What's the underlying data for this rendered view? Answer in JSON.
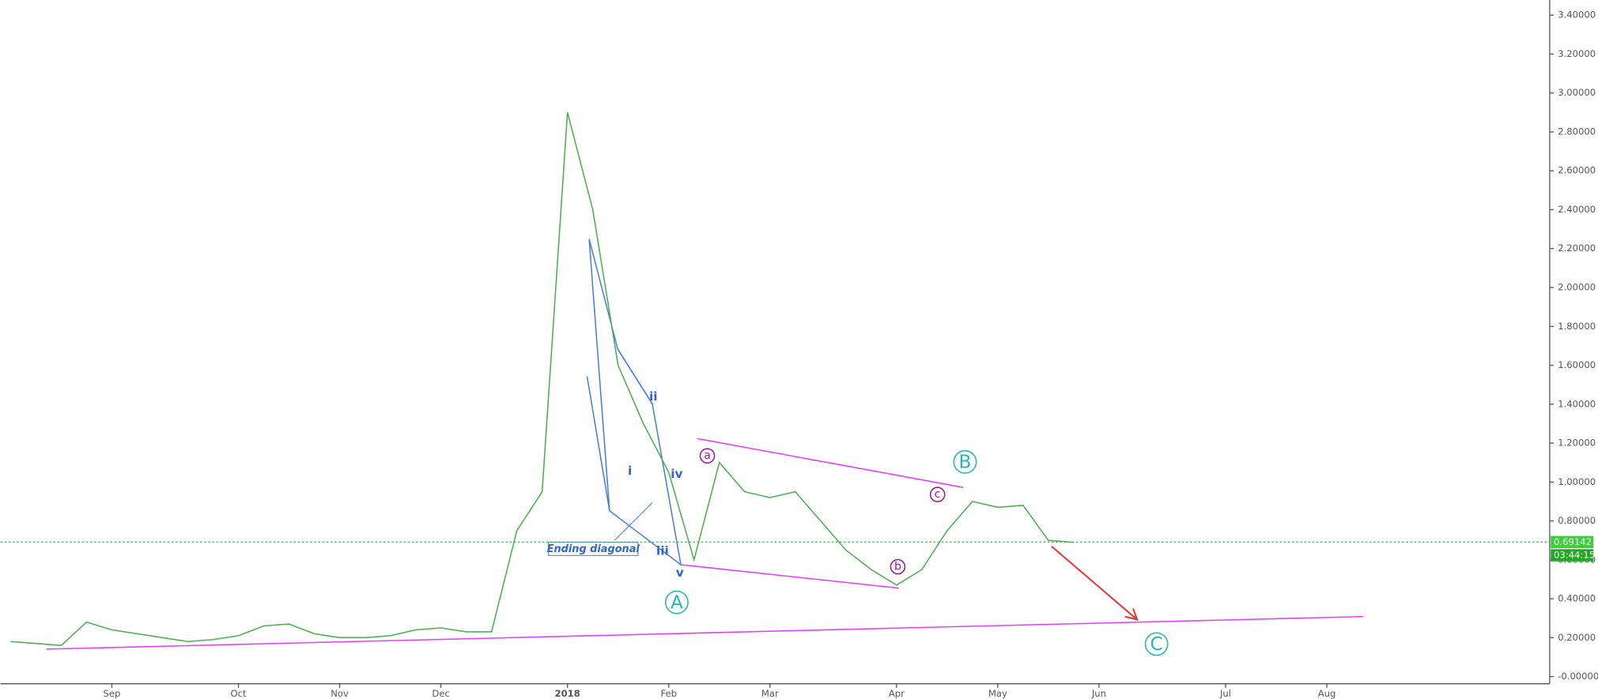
{
  "chart_data": {
    "type": "line",
    "categories": [
      null,
      null,
      null,
      null,
      "Sep",
      null,
      null,
      null,
      null,
      "Oct",
      null,
      null,
      null,
      "Nov",
      null,
      null,
      null,
      "Dec",
      null,
      null,
      null,
      null,
      "2018",
      null,
      null,
      null,
      "Feb",
      null,
      null,
      null,
      "Mar",
      null,
      null,
      null,
      null,
      "Apr",
      null,
      null,
      null,
      "May",
      null,
      null,
      null,
      "Jun",
      null,
      null,
      null,
      null,
      "Jul",
      null,
      null,
      null,
      "Aug",
      null,
      null,
      null,
      null,
      null,
      null,
      null,
      null
    ],
    "series": [
      {
        "name": null,
        "color": "#4caf50",
        "values": [
          0.18,
          0.17,
          0.16,
          0.28,
          0.24,
          0.22,
          0.2,
          0.18,
          0.19,
          0.21,
          0.26,
          0.27,
          0.22,
          0.2,
          0.2,
          0.21,
          0.24,
          0.25,
          0.23,
          0.23,
          0.75,
          0.95,
          2.9,
          2.4,
          1.6,
          1.3,
          1.05,
          0.6,
          1.1,
          0.95,
          0.92,
          0.95,
          0.8,
          0.65,
          0.55,
          0.47,
          0.55,
          0.75,
          0.9,
          0.87,
          0.88,
          0.7,
          0.69,
          null,
          null,
          null,
          null,
          null,
          null,
          null,
          null,
          null,
          null,
          null,
          null,
          null,
          null,
          null,
          null,
          null,
          null
        ]
      }
    ],
    "ylim": [
      -0.037,
      3.478
    ],
    "yticks": [
      {
        "value": 0,
        "label": "-0.00000"
      },
      {
        "value": 0.2,
        "label": "0.20000"
      },
      {
        "value": 0.4,
        "label": "0.40000"
      },
      {
        "value": 0.6,
        "label": "0.60000"
      },
      {
        "value": 0.8,
        "label": "0.80000"
      },
      {
        "value": 1.0,
        "label": "1.00000"
      },
      {
        "value": 1.2,
        "label": "1.20000"
      },
      {
        "value": 1.4,
        "label": "1.40000"
      },
      {
        "value": 1.6,
        "label": "1.60000"
      },
      {
        "value": 1.8,
        "label": "1.80000"
      },
      {
        "value": 2.0,
        "label": "2.00000"
      },
      {
        "value": 2.2,
        "label": "2.20000"
      },
      {
        "value": 2.4,
        "label": "2.40000"
      },
      {
        "value": 2.6,
        "label": "2.60000"
      },
      {
        "value": 2.8,
        "label": "2.80000"
      },
      {
        "value": 3.0,
        "label": "3.00000"
      },
      {
        "value": 3.2,
        "label": "3.20000"
      },
      {
        "value": 3.4,
        "label": "3.40000"
      }
    ],
    "current_price": {
      "value": 0.69142,
      "label": "0.69142",
      "countdown": "03:44:15"
    },
    "annotations": [
      "i",
      "ii",
      "iii",
      "iv",
      "v",
      "A",
      "B",
      "C",
      "a",
      "b",
      "c",
      "Ending diagonal"
    ]
  }
}
